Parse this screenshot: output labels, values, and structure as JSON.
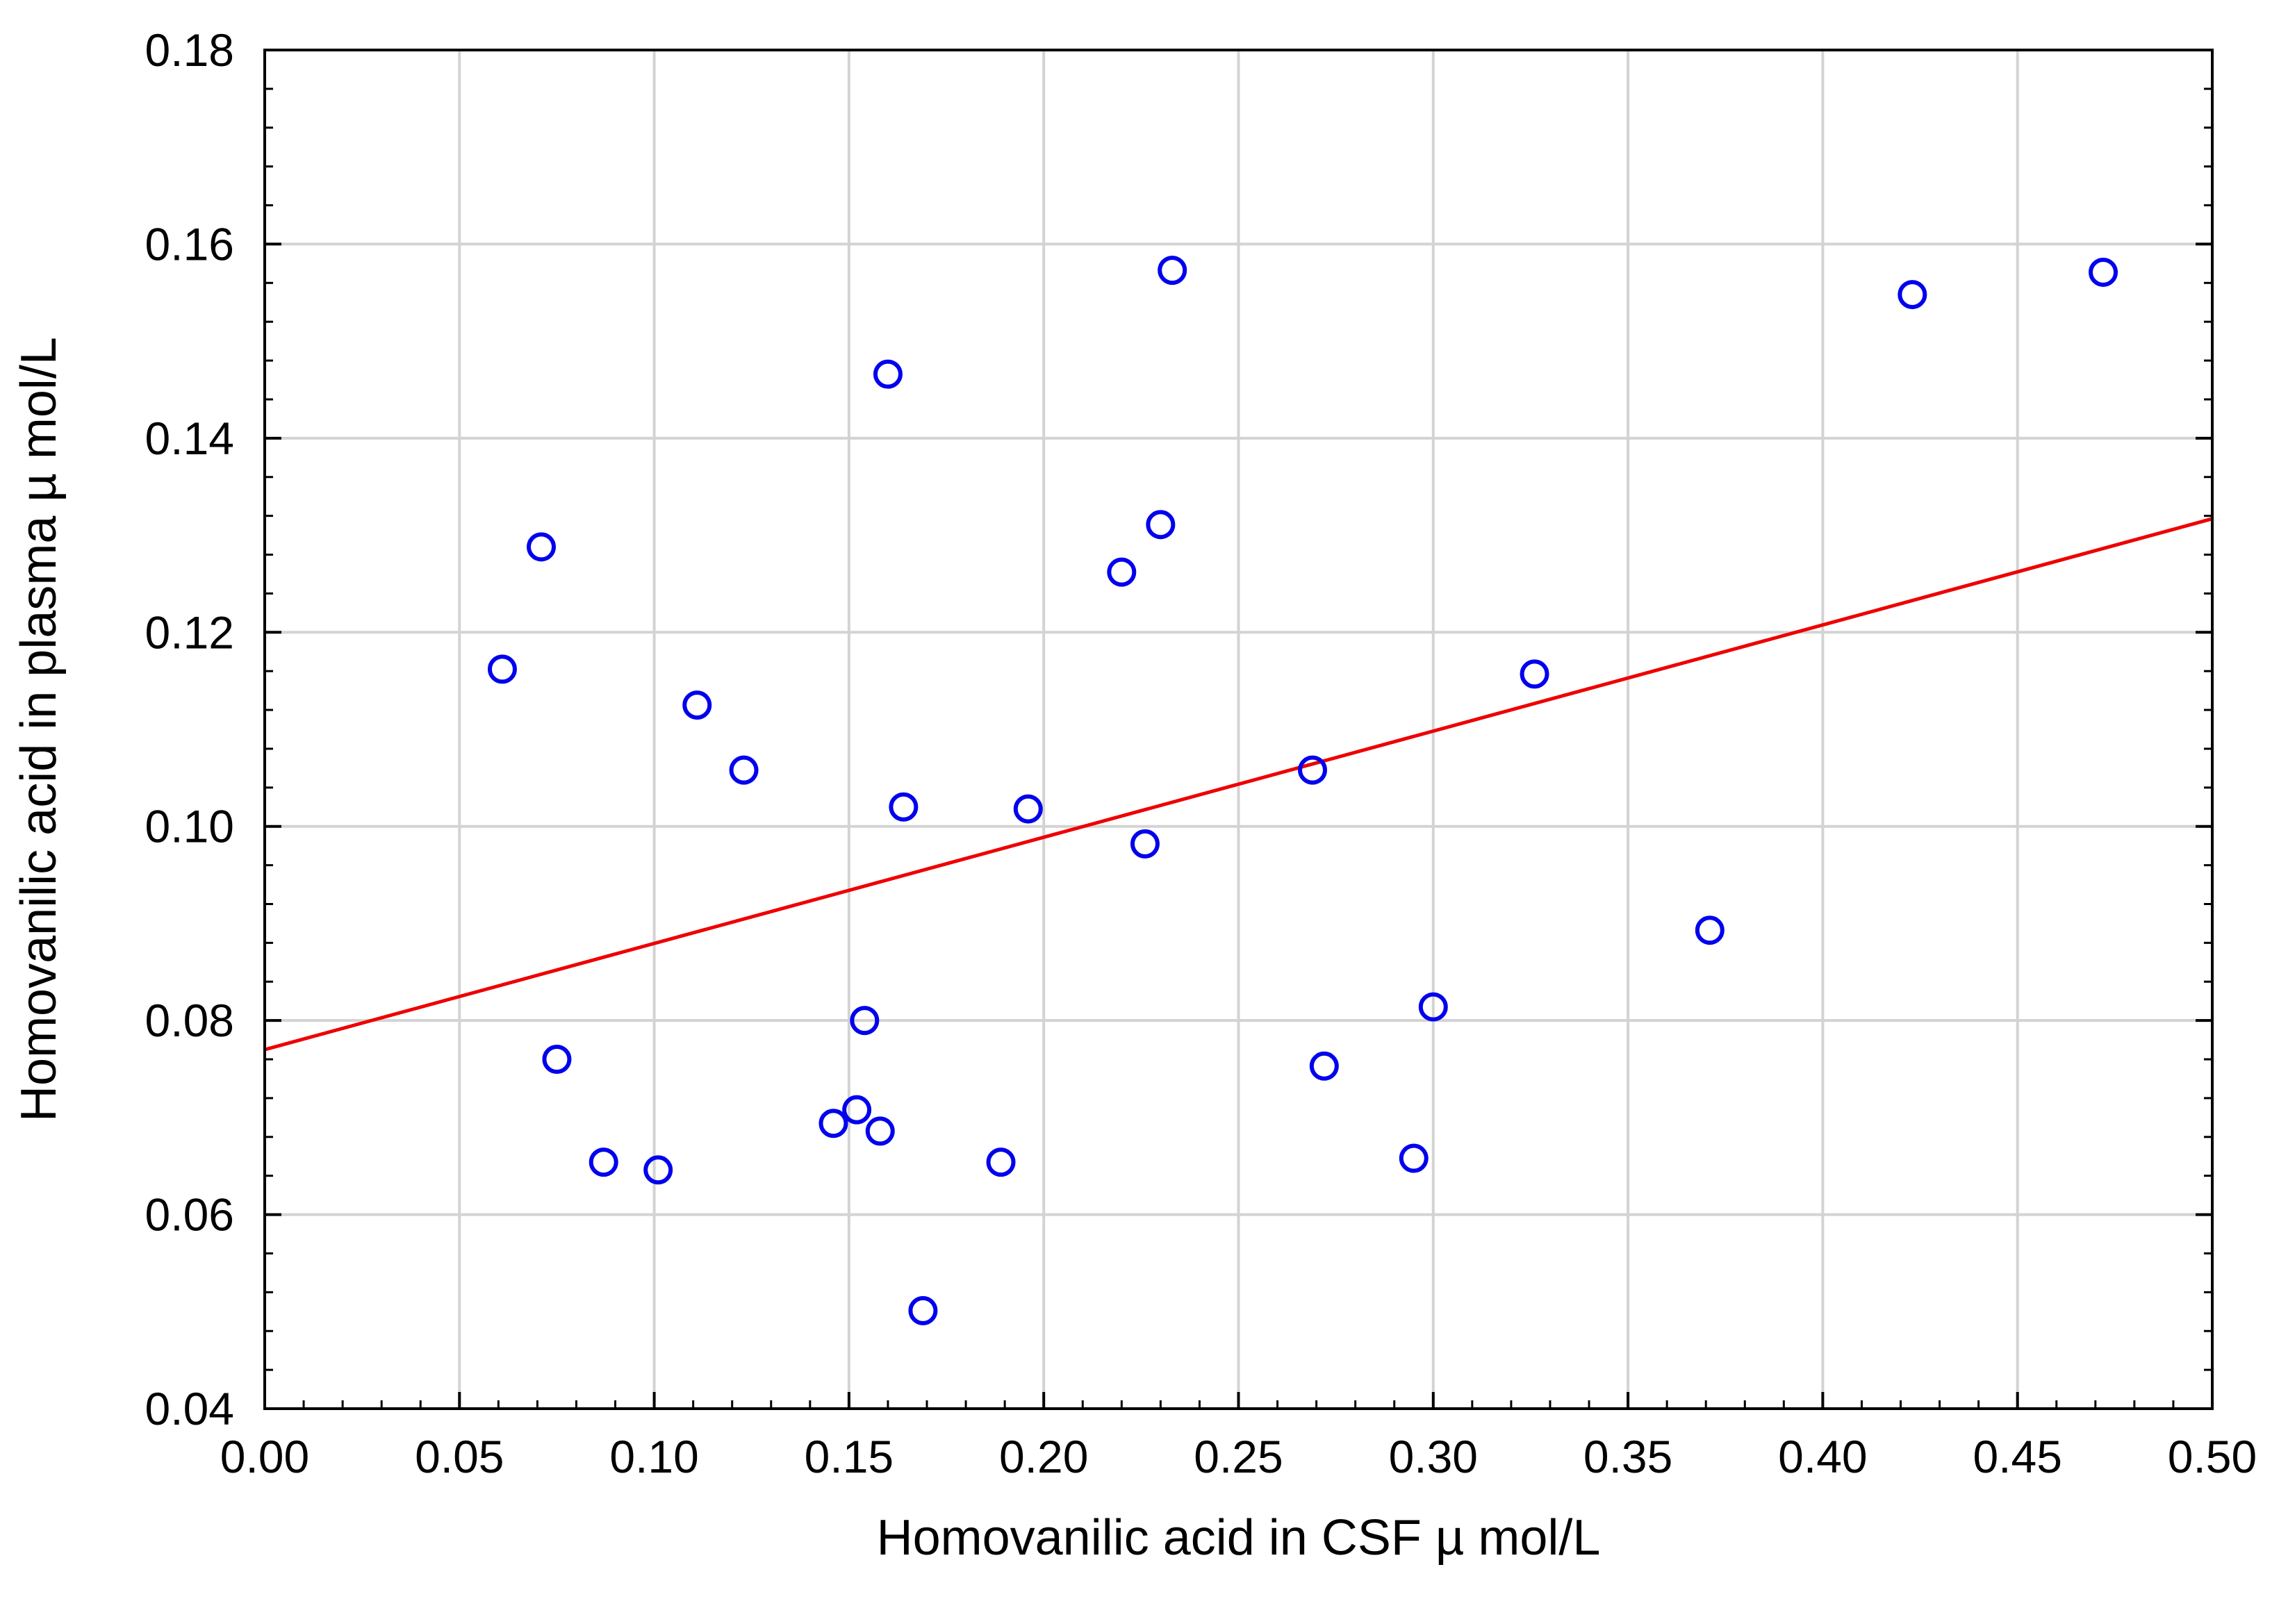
{
  "chart_data": {
    "type": "scatter",
    "xlabel": "Homovanilic acid in CSF µ mol/L",
    "ylabel": "Homovanilic acid in plasma µ mol/L",
    "xlim": [
      0.0,
      0.5
    ],
    "ylim": [
      0.04,
      0.18
    ],
    "x_ticks": [
      "0.00",
      "0.05",
      "0.10",
      "0.15",
      "0.20",
      "0.25",
      "0.30",
      "0.35",
      "0.40",
      "0.45",
      "0.50"
    ],
    "y_ticks": [
      "0.04",
      "0.06",
      "0.08",
      "0.10",
      "0.12",
      "0.14",
      "0.16",
      "0.18"
    ],
    "grid": true,
    "marker_color": "#0000ee",
    "line_color": "#ee0000",
    "points": [
      {
        "x": 0.061,
        "y": 0.1162
      },
      {
        "x": 0.071,
        "y": 0.1288
      },
      {
        "x": 0.075,
        "y": 0.076
      },
      {
        "x": 0.087,
        "y": 0.0654
      },
      {
        "x": 0.101,
        "y": 0.0646
      },
      {
        "x": 0.111,
        "y": 0.1125
      },
      {
        "x": 0.123,
        "y": 0.1058
      },
      {
        "x": 0.146,
        "y": 0.0694
      },
      {
        "x": 0.152,
        "y": 0.0708
      },
      {
        "x": 0.154,
        "y": 0.08
      },
      {
        "x": 0.158,
        "y": 0.0686
      },
      {
        "x": 0.16,
        "y": 0.1466
      },
      {
        "x": 0.164,
        "y": 0.102
      },
      {
        "x": 0.169,
        "y": 0.0501
      },
      {
        "x": 0.189,
        "y": 0.0654
      },
      {
        "x": 0.196,
        "y": 0.1018
      },
      {
        "x": 0.22,
        "y": 0.1262
      },
      {
        "x": 0.226,
        "y": 0.0982
      },
      {
        "x": 0.23,
        "y": 0.1311
      },
      {
        "x": 0.233,
        "y": 0.1573
      },
      {
        "x": 0.269,
        "y": 0.1058
      },
      {
        "x": 0.272,
        "y": 0.0753
      },
      {
        "x": 0.295,
        "y": 0.0658
      },
      {
        "x": 0.3,
        "y": 0.0814
      },
      {
        "x": 0.326,
        "y": 0.1157
      },
      {
        "x": 0.371,
        "y": 0.0893
      },
      {
        "x": 0.423,
        "y": 0.1548
      },
      {
        "x": 0.472,
        "y": 0.1571
      }
    ],
    "regression_line": {
      "x": [
        0.0,
        0.5
      ],
      "y": [
        0.077,
        0.1317
      ]
    }
  }
}
